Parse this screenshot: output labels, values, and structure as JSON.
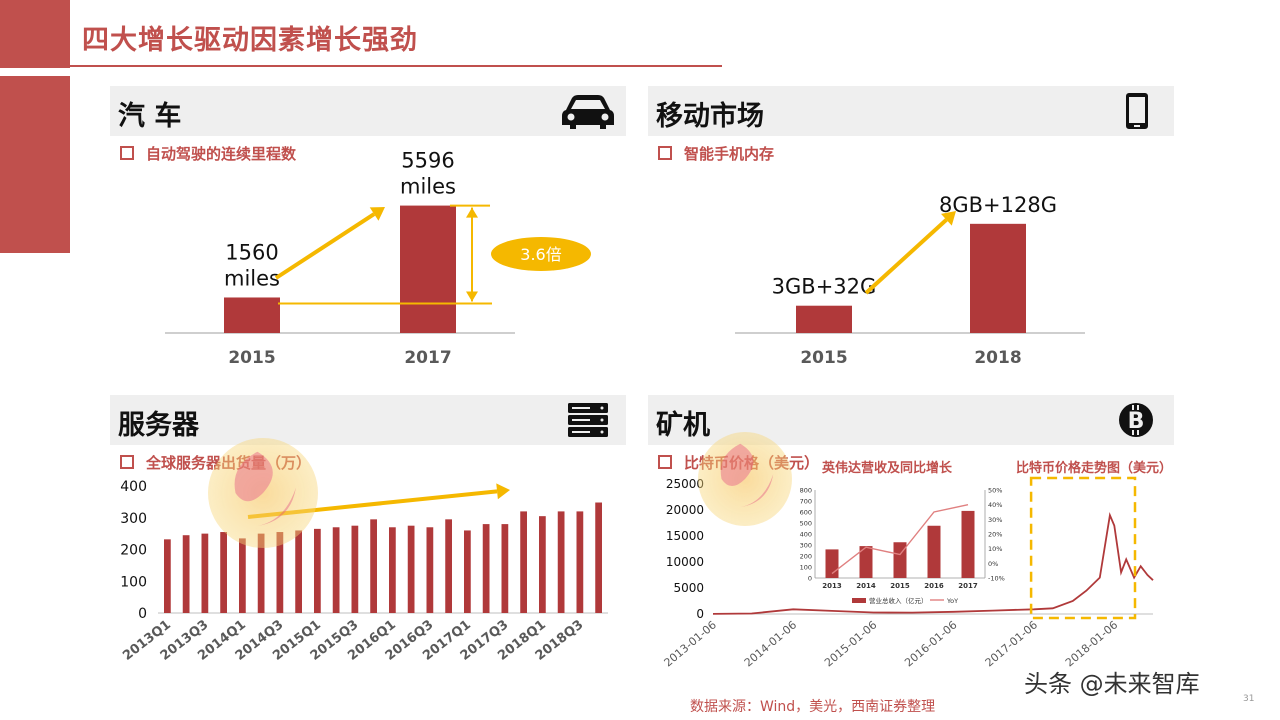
{
  "page": {
    "title": "四大增长驱动因素增长强劲",
    "source": "数据来源：Wind，美光，西南证券整理",
    "page_number": "31",
    "watermark": "头条 @未来智库"
  },
  "panels": {
    "car": {
      "title": "汽 车",
      "subtitle": "自动驾驶的连续里程数",
      "icon": "car-icon",
      "bar_labels": [
        "1560\nmiles",
        "5596\nmiles"
      ],
      "badge": "3.6倍"
    },
    "mobile": {
      "title": "移动市场",
      "subtitle": "智能手机内存",
      "icon": "smartphone-icon",
      "bar_labels": [
        "3GB+32G",
        "8GB+128G"
      ]
    },
    "server": {
      "title": "服务器",
      "subtitle": "全球服务器出货量（万）",
      "icon": "server-rack-icon"
    },
    "miner": {
      "title": "矿机",
      "subtitle": "比特币价格（美元）",
      "icon": "bitcoin-icon",
      "inset_title": "英伟达营收及同比增长",
      "btc_title": "比特币价格走势图（美元）",
      "inset_legend": [
        "营业总收入（亿元）",
        "YoY"
      ]
    }
  },
  "colors": {
    "accent": "#c0504d",
    "bar": "#b0393a",
    "arrow": "#f5b800",
    "panel_bg": "#efefef"
  },
  "chart_data": [
    {
      "id": "car",
      "type": "bar",
      "categories": [
        "2015",
        "2017"
      ],
      "values": [
        1560,
        5596
      ],
      "title": "自动驾驶的连续里程数",
      "ylim": [
        0,
        6500
      ]
    },
    {
      "id": "mobile",
      "type": "bar",
      "categories": [
        "2015",
        "2018"
      ],
      "values": [
        32,
        128
      ],
      "title": "智能手机内存",
      "ylim": [
        0,
        170
      ]
    },
    {
      "id": "server",
      "type": "bar",
      "categories": [
        "2013Q1",
        "2013Q2",
        "2013Q3",
        "2013Q4",
        "2014Q1",
        "2014Q2",
        "2014Q3",
        "2014Q4",
        "2015Q1",
        "2015Q2",
        "2015Q3",
        "2015Q4",
        "2016Q1",
        "2016Q2",
        "2016Q3",
        "2016Q4",
        "2017Q1",
        "2017Q2",
        "2017Q3",
        "2017Q4",
        "2018Q1",
        "2018Q2",
        "2018Q3",
        "2018Q4"
      ],
      "tick_labels": [
        "2013Q1",
        "2013Q3",
        "2014Q1",
        "2014Q3",
        "2015Q1",
        "2015Q3",
        "2016Q1",
        "2016Q3",
        "2017Q1",
        "2017Q3",
        "2018Q1",
        "2018Q3"
      ],
      "values": [
        232,
        245,
        250,
        255,
        235,
        250,
        255,
        260,
        265,
        270,
        275,
        295,
        270,
        275,
        270,
        295,
        260,
        280,
        280,
        320,
        305,
        320,
        320,
        348
      ],
      "title": "全球服务器出货量（万）",
      "ylim": [
        0,
        400
      ],
      "yticks": [
        0,
        100,
        200,
        300,
        400
      ]
    },
    {
      "id": "nvidia",
      "type": "bar",
      "categories": [
        "2013",
        "2014",
        "2015",
        "2016",
        "2017"
      ],
      "series": [
        {
          "name": "营业总收入（亿元）",
          "values": [
            260,
            290,
            325,
            475,
            610
          ]
        },
        {
          "name": "YoY",
          "values": [
            -7,
            11,
            6,
            35,
            40
          ]
        }
      ],
      "title": "英伟达营收及同比增长",
      "ylim": [
        0,
        800
      ],
      "y2lim": [
        -10,
        50
      ],
      "yticks": [
        0,
        100,
        200,
        300,
        400,
        500,
        600,
        700,
        800
      ],
      "y2ticks": [
        "-10%",
        "0%",
        "10%",
        "20%",
        "30%",
        "40%",
        "50%"
      ]
    },
    {
      "id": "btc",
      "type": "line",
      "x": [
        "2013-01-06",
        "2013-07-01",
        "2014-01-06",
        "2014-07-01",
        "2015-01-06",
        "2015-07-01",
        "2016-01-06",
        "2016-07-01",
        "2017-01-06",
        "2017-04-01",
        "2017-07-01",
        "2017-09-01",
        "2017-11-01",
        "2017-12-17",
        "2018-01-06",
        "2018-02-06",
        "2018-03-01",
        "2018-04-06",
        "2018-05-06",
        "2018-06-06",
        "2018-07-01"
      ],
      "values": [
        15,
        90,
        900,
        600,
        280,
        260,
        430,
        650,
        900,
        1100,
        2500,
        4500,
        7000,
        19000,
        17000,
        8000,
        10500,
        7000,
        9200,
        7500,
        6500
      ],
      "x_tick_labels": [
        "2013-01-06",
        "2014-01-06",
        "2015-01-06",
        "2016-01-06",
        "2017-01-06",
        "2018-01-06"
      ],
      "title": "比特币价格走势图（美元）",
      "ylim": [
        0,
        25000
      ],
      "yticks": [
        0,
        5000,
        10000,
        15000,
        20000,
        25000
      ]
    }
  ]
}
